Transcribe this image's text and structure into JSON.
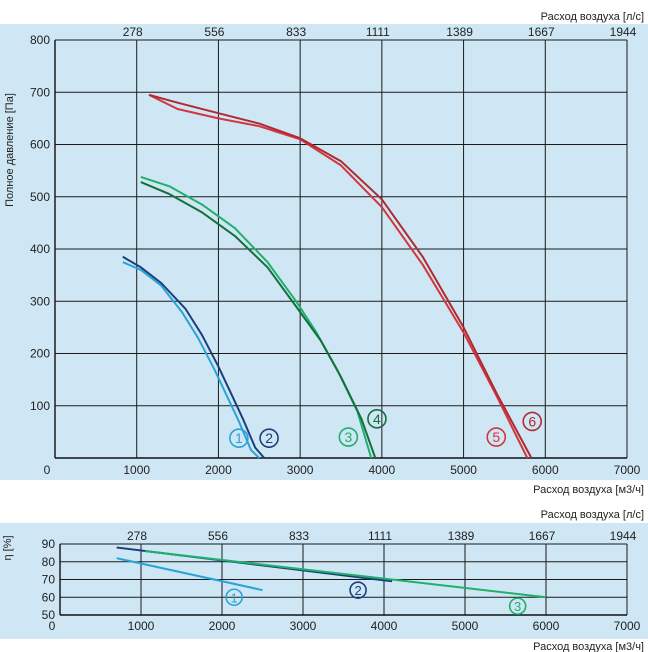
{
  "chart_data": [
    {
      "type": "line",
      "xlabel": "Расход воздуха [м3/ч]",
      "x2label": "Расход воздуха [л/с]",
      "ylabel": "Полное давление [Па]",
      "xlim": [
        0,
        7000
      ],
      "ylim": [
        0,
        800
      ],
      "x_ticks": [
        "0",
        "1000",
        "2000",
        "3000",
        "4000",
        "5000",
        "6000",
        "7000"
      ],
      "x2_ticks": [
        "278",
        "556",
        "833",
        "1111",
        "1389",
        "1667",
        "1944"
      ],
      "y_ticks": [
        "100",
        "200",
        "300",
        "400",
        "500",
        "600",
        "700",
        "800"
      ],
      "grid": true,
      "series": [
        {
          "name": "1",
          "color": "#2aa3d8",
          "x": [
            830,
            1050,
            1300,
            1550,
            1750,
            1950,
            2100,
            2250,
            2400,
            2500
          ],
          "y": [
            375,
            360,
            330,
            280,
            230,
            170,
            120,
            70,
            15,
            0
          ],
          "label_x": 2250,
          "label_y": 38
        },
        {
          "name": "2",
          "color": "#1b3f7c",
          "x": [
            830,
            1050,
            1300,
            1600,
            1800,
            2000,
            2150,
            2300,
            2450,
            2560
          ],
          "y": [
            385,
            365,
            335,
            285,
            235,
            175,
            125,
            75,
            20,
            0
          ],
          "label_x": 2620,
          "label_y": 38
        },
        {
          "name": "3",
          "color": "#1fb06a",
          "x": [
            1050,
            1400,
            1800,
            2200,
            2600,
            2950,
            3200,
            3450,
            3700,
            3870
          ],
          "y": [
            538,
            520,
            485,
            440,
            375,
            300,
            240,
            170,
            90,
            0
          ],
          "label_x": 3590,
          "label_y": 40
        },
        {
          "name": "4",
          "color": "#156f3c",
          "x": [
            1050,
            1400,
            1800,
            2200,
            2600,
            2950,
            3250,
            3500,
            3750,
            3920
          ],
          "y": [
            528,
            505,
            470,
            425,
            365,
            290,
            225,
            155,
            75,
            0
          ],
          "label_x": 3940,
          "label_y": 75
        },
        {
          "name": "5",
          "color": "#d0363e",
          "x": [
            1150,
            1500,
            2000,
            2500,
            3000,
            3500,
            4000,
            4500,
            5000,
            5400,
            5780
          ],
          "y": [
            695,
            668,
            650,
            635,
            610,
            560,
            480,
            370,
            240,
            120,
            0
          ],
          "label_x": 5400,
          "label_y": 40
        },
        {
          "name": "6",
          "color": "#b02a33",
          "x": [
            1150,
            1500,
            2000,
            2500,
            3000,
            3500,
            4000,
            4500,
            5000,
            5400,
            5830
          ],
          "y": [
            695,
            680,
            660,
            640,
            612,
            568,
            495,
            385,
            250,
            125,
            0
          ],
          "label_x": 5840,
          "label_y": 70
        }
      ]
    },
    {
      "type": "line",
      "xlabel": "Расход воздуха [м3/ч]",
      "x2label": "Расход воздуха [л/с]",
      "ylabel": "η [%]",
      "xlim": [
        0,
        7000
      ],
      "ylim": [
        50,
        90
      ],
      "x_ticks": [
        "0",
        "1000",
        "2000",
        "3000",
        "4000",
        "5000",
        "6000",
        "7000"
      ],
      "x2_ticks": [
        "278",
        "556",
        "833",
        "1111",
        "1389",
        "1667",
        "1944"
      ],
      "y_ticks": [
        "50",
        "60",
        "70",
        "80",
        "90"
      ],
      "grid": true,
      "series": [
        {
          "name": "1",
          "color": "#2aa3d8",
          "x": [
            700,
            2500
          ],
          "y": [
            82,
            64
          ],
          "label_x": 2150,
          "label_y": 60
        },
        {
          "name": "2",
          "color": "#1b3f7c",
          "x": [
            700,
            4100
          ],
          "y": [
            88,
            69
          ],
          "label_x": 3680,
          "label_y": 64
        },
        {
          "name": "3",
          "color": "#1fb06a",
          "x": [
            1050,
            6000
          ],
          "y": [
            86,
            60
          ],
          "label_x": 5650,
          "label_y": 55
        }
      ]
    }
  ]
}
